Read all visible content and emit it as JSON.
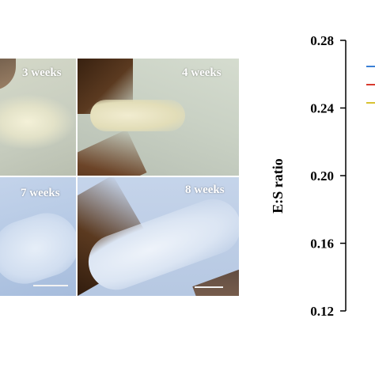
{
  "panels": [
    {
      "label": "3 weeks"
    },
    {
      "label": "4 weeks"
    },
    {
      "label": "7 weeks"
    },
    {
      "label": "8 weeks"
    }
  ],
  "chart_data": {
    "type": "line",
    "ylabel": "E:S ratio",
    "ylim": [
      0.12,
      0.28
    ],
    "yticks": [
      "0.28",
      "0.24",
      "0.20",
      "0.16",
      "0.12"
    ],
    "yticks_values": [
      0.28,
      0.24,
      0.2,
      0.16,
      0.12
    ],
    "legend_colors": [
      "#3a7fd5",
      "#d83a2e",
      "#d8c232"
    ],
    "legend_placement": "top-right"
  }
}
